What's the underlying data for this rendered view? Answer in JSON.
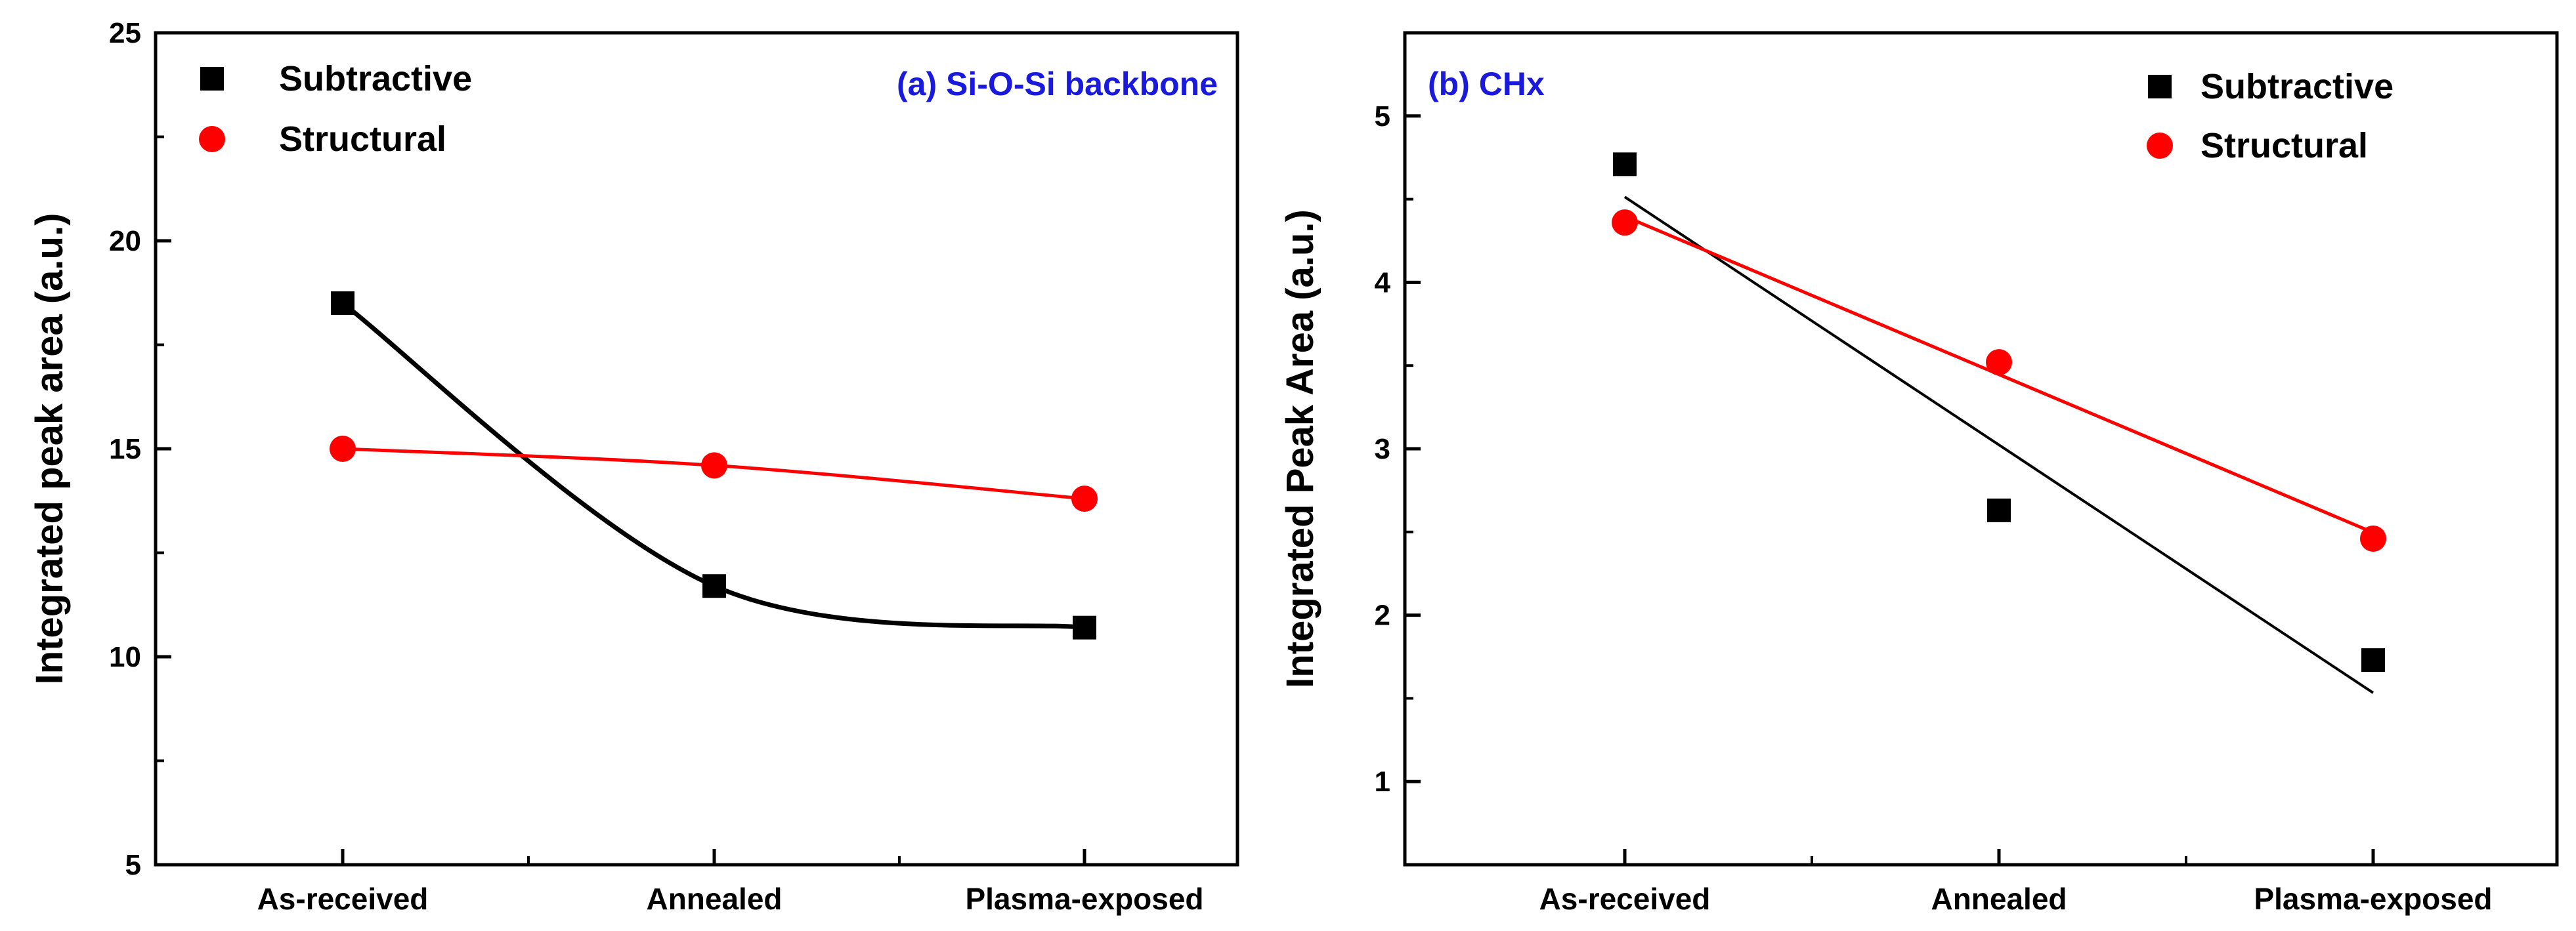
{
  "chart_data": [
    {
      "type": "scatter",
      "title": "(a) Si-O-Si backbone",
      "title_color": "#1a1adc",
      "xlabel": "",
      "ylabel": "Integrated peak area (a.u.)",
      "categories": [
        "As-received",
        "Annealed",
        "Plasma-exposed"
      ],
      "ylim": [
        5,
        25
      ],
      "yticks": [
        5,
        10,
        15,
        20,
        25
      ],
      "legend_position": "top-left",
      "grid": false,
      "fit": "smooth curve",
      "series": [
        {
          "name": "Subtractive",
          "marker": "square",
          "color": "#000000",
          "values": [
            18.5,
            11.7,
            10.7
          ]
        },
        {
          "name": "Structural",
          "marker": "circle",
          "color": "#ff0000",
          "values": [
            15.0,
            14.6,
            13.8
          ]
        }
      ]
    },
    {
      "type": "scatter",
      "title": "(b) CHx",
      "title_color": "#1a1adc",
      "xlabel": "",
      "ylabel": "Integrated Peak Area (a.u.)",
      "categories": [
        "As-received",
        "Annealed",
        "Plasma-exposed"
      ],
      "ylim": [
        0.5,
        5.5
      ],
      "yticks": [
        1,
        2,
        3,
        4,
        5
      ],
      "legend_position": "top-right",
      "grid": false,
      "fit": "linear",
      "series": [
        {
          "name": "Subtractive",
          "marker": "square",
          "color": "#000000",
          "values": [
            4.71,
            2.63,
            1.73
          ]
        },
        {
          "name": "Structural",
          "marker": "circle",
          "color": "#ff0000",
          "values": [
            4.36,
            3.52,
            2.46
          ]
        }
      ]
    }
  ]
}
